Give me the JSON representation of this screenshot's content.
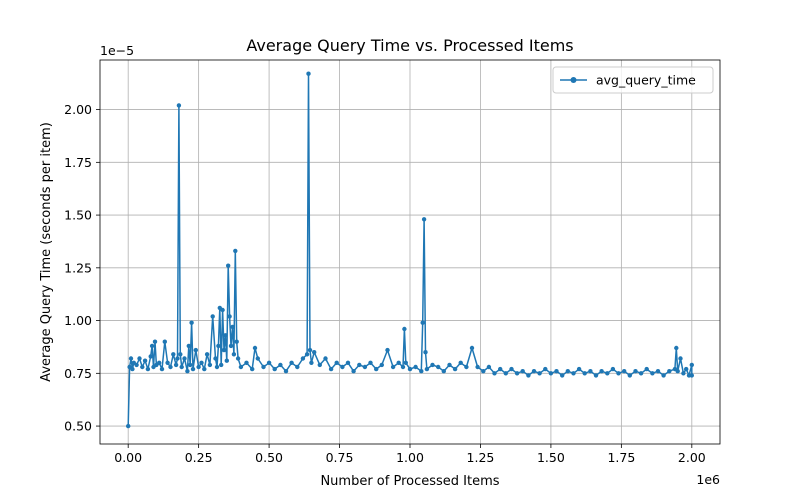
{
  "chart_data": {
    "type": "line",
    "title": "Average Query Time vs. Processed Items",
    "xlabel": "Number of Processed Items",
    "ylabel": "Average Query Time (seconds per item)",
    "x_offset_text": "1e6",
    "y_offset_text": "1e−5",
    "x_scale": 1000000,
    "y_scale": 1e-05,
    "xlim": [
      -0.1,
      2.1
    ],
    "ylim": [
      0.415,
      2.235
    ],
    "xticks": [
      0.0,
      0.25,
      0.5,
      0.75,
      1.0,
      1.25,
      1.5,
      1.75,
      2.0
    ],
    "xtick_labels": [
      "0.00",
      "0.25",
      "0.50",
      "0.75",
      "1.00",
      "1.25",
      "1.50",
      "1.75",
      "2.00"
    ],
    "yticks": [
      0.5,
      0.75,
      1.0,
      1.25,
      1.5,
      1.75,
      2.0
    ],
    "ytick_labels": [
      "0.50",
      "0.75",
      "1.00",
      "1.25",
      "1.50",
      "1.75",
      "2.00"
    ],
    "grid": true,
    "legend": {
      "position": "upper right",
      "entries": [
        "avg_query_time"
      ]
    },
    "colors": {
      "series": "#1f77b4"
    },
    "series": [
      {
        "name": "avg_query_time",
        "marker": "circle",
        "points": [
          [
            0.0,
            0.5
          ],
          [
            0.005,
            0.78
          ],
          [
            0.01,
            0.82
          ],
          [
            0.015,
            0.77
          ],
          [
            0.02,
            0.8
          ],
          [
            0.03,
            0.79
          ],
          [
            0.04,
            0.82
          ],
          [
            0.05,
            0.78
          ],
          [
            0.06,
            0.81
          ],
          [
            0.07,
            0.77
          ],
          [
            0.08,
            0.83
          ],
          [
            0.085,
            0.88
          ],
          [
            0.09,
            0.78
          ],
          [
            0.095,
            0.9
          ],
          [
            0.1,
            0.79
          ],
          [
            0.11,
            0.8
          ],
          [
            0.12,
            0.77
          ],
          [
            0.13,
            0.9
          ],
          [
            0.14,
            0.8
          ],
          [
            0.15,
            0.78
          ],
          [
            0.16,
            0.84
          ],
          [
            0.17,
            0.79
          ],
          [
            0.175,
            0.82
          ],
          [
            0.18,
            2.02
          ],
          [
            0.185,
            0.84
          ],
          [
            0.19,
            0.78
          ],
          [
            0.2,
            0.82
          ],
          [
            0.21,
            0.76
          ],
          [
            0.215,
            0.88
          ],
          [
            0.22,
            0.79
          ],
          [
            0.225,
            0.99
          ],
          [
            0.23,
            0.77
          ],
          [
            0.24,
            0.86
          ],
          [
            0.25,
            0.78
          ],
          [
            0.26,
            0.8
          ],
          [
            0.27,
            0.77
          ],
          [
            0.28,
            0.84
          ],
          [
            0.29,
            0.79
          ],
          [
            0.3,
            1.02
          ],
          [
            0.31,
            0.82
          ],
          [
            0.315,
            0.78
          ],
          [
            0.32,
            0.88
          ],
          [
            0.325,
            1.06
          ],
          [
            0.33,
            0.79
          ],
          [
            0.335,
            1.05
          ],
          [
            0.34,
            0.86
          ],
          [
            0.345,
            0.93
          ],
          [
            0.35,
            0.81
          ],
          [
            0.355,
            1.26
          ],
          [
            0.36,
            1.02
          ],
          [
            0.365,
            0.88
          ],
          [
            0.37,
            0.97
          ],
          [
            0.375,
            0.84
          ],
          [
            0.38,
            1.33
          ],
          [
            0.385,
            0.9
          ],
          [
            0.39,
            0.82
          ],
          [
            0.4,
            0.78
          ],
          [
            0.42,
            0.8
          ],
          [
            0.44,
            0.77
          ],
          [
            0.45,
            0.87
          ],
          [
            0.46,
            0.82
          ],
          [
            0.48,
            0.78
          ],
          [
            0.5,
            0.8
          ],
          [
            0.52,
            0.77
          ],
          [
            0.54,
            0.79
          ],
          [
            0.56,
            0.76
          ],
          [
            0.58,
            0.8
          ],
          [
            0.6,
            0.78
          ],
          [
            0.62,
            0.82
          ],
          [
            0.635,
            0.84
          ],
          [
            0.64,
            2.17
          ],
          [
            0.645,
            0.86
          ],
          [
            0.65,
            0.8
          ],
          [
            0.66,
            0.85
          ],
          [
            0.68,
            0.79
          ],
          [
            0.7,
            0.82
          ],
          [
            0.72,
            0.77
          ],
          [
            0.74,
            0.8
          ],
          [
            0.76,
            0.78
          ],
          [
            0.78,
            0.8
          ],
          [
            0.8,
            0.76
          ],
          [
            0.82,
            0.79
          ],
          [
            0.84,
            0.78
          ],
          [
            0.86,
            0.8
          ],
          [
            0.88,
            0.77
          ],
          [
            0.9,
            0.79
          ],
          [
            0.92,
            0.86
          ],
          [
            0.94,
            0.78
          ],
          [
            0.96,
            0.8
          ],
          [
            0.975,
            0.78
          ],
          [
            0.98,
            0.96
          ],
          [
            0.985,
            0.8
          ],
          [
            1.0,
            0.77
          ],
          [
            1.02,
            0.78
          ],
          [
            1.04,
            0.76
          ],
          [
            1.045,
            0.99
          ],
          [
            1.05,
            1.48
          ],
          [
            1.055,
            0.85
          ],
          [
            1.06,
            0.77
          ],
          [
            1.08,
            0.79
          ],
          [
            1.1,
            0.78
          ],
          [
            1.12,
            0.76
          ],
          [
            1.14,
            0.79
          ],
          [
            1.16,
            0.77
          ],
          [
            1.18,
            0.8
          ],
          [
            1.2,
            0.78
          ],
          [
            1.22,
            0.87
          ],
          [
            1.24,
            0.78
          ],
          [
            1.26,
            0.76
          ],
          [
            1.28,
            0.78
          ],
          [
            1.3,
            0.75
          ],
          [
            1.32,
            0.77
          ],
          [
            1.34,
            0.75
          ],
          [
            1.36,
            0.77
          ],
          [
            1.38,
            0.75
          ],
          [
            1.4,
            0.76
          ],
          [
            1.42,
            0.74
          ],
          [
            1.44,
            0.76
          ],
          [
            1.46,
            0.75
          ],
          [
            1.48,
            0.77
          ],
          [
            1.5,
            0.75
          ],
          [
            1.52,
            0.76
          ],
          [
            1.54,
            0.74
          ],
          [
            1.56,
            0.76
          ],
          [
            1.58,
            0.75
          ],
          [
            1.6,
            0.77
          ],
          [
            1.62,
            0.75
          ],
          [
            1.64,
            0.76
          ],
          [
            1.66,
            0.74
          ],
          [
            1.68,
            0.76
          ],
          [
            1.7,
            0.75
          ],
          [
            1.72,
            0.77
          ],
          [
            1.74,
            0.75
          ],
          [
            1.76,
            0.76
          ],
          [
            1.78,
            0.74
          ],
          [
            1.8,
            0.76
          ],
          [
            1.82,
            0.75
          ],
          [
            1.84,
            0.77
          ],
          [
            1.86,
            0.75
          ],
          [
            1.88,
            0.76
          ],
          [
            1.9,
            0.74
          ],
          [
            1.92,
            0.76
          ],
          [
            1.94,
            0.77
          ],
          [
            1.945,
            0.87
          ],
          [
            1.95,
            0.76
          ],
          [
            1.96,
            0.82
          ],
          [
            1.97,
            0.75
          ],
          [
            1.98,
            0.77
          ],
          [
            1.99,
            0.74
          ],
          [
            2.0,
            0.79
          ],
          [
            2.0,
            0.74
          ]
        ]
      }
    ]
  }
}
